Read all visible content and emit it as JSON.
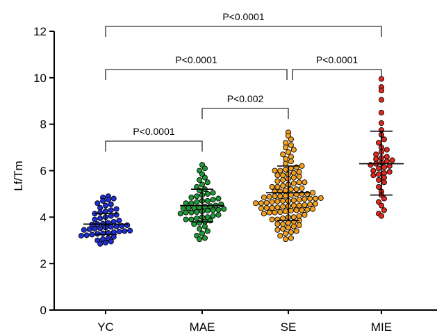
{
  "chart_data": {
    "type": "scatter",
    "title": "",
    "xlabel": "",
    "ylabel": "Lf/Tm",
    "ylim": [
      0,
      12
    ],
    "yticks": [
      "0",
      "2",
      "4",
      "6",
      "8",
      "10",
      "12"
    ],
    "grid": false,
    "categories": [
      "YC",
      "MAE",
      "SE",
      "MIE"
    ],
    "series": [
      {
        "category": "YC",
        "color": "#1f2fd6",
        "mean": 3.7,
        "sd_low": 3.25,
        "sd_high": 4.15,
        "values": [
          4.9,
          4.85,
          4.8,
          4.75,
          4.7,
          4.6,
          4.55,
          4.5,
          4.4,
          4.35,
          4.3,
          4.25,
          4.2,
          4.15,
          4.1,
          4.05,
          4.0,
          3.95,
          3.9,
          3.85,
          3.8,
          3.75,
          3.72,
          3.7,
          3.68,
          3.65,
          3.62,
          3.6,
          3.58,
          3.55,
          3.52,
          3.5,
          3.48,
          3.45,
          3.42,
          3.4,
          3.38,
          3.35,
          3.32,
          3.3,
          3.28,
          3.25,
          3.22,
          3.2,
          3.15,
          3.1,
          3.05,
          3.0,
          2.95,
          2.9,
          2.85
        ]
      },
      {
        "category": "MAE",
        "color": "#1e9a36",
        "mean": 4.5,
        "sd_low": 3.8,
        "sd_high": 5.2,
        "values": [
          6.25,
          6.1,
          6.0,
          5.85,
          5.7,
          5.6,
          5.5,
          5.4,
          5.3,
          5.2,
          5.15,
          5.05,
          5.0,
          4.95,
          4.9,
          4.85,
          4.8,
          4.75,
          4.7,
          4.65,
          4.6,
          4.55,
          4.5,
          4.48,
          4.45,
          4.42,
          4.4,
          4.38,
          4.35,
          4.32,
          4.3,
          4.28,
          4.25,
          4.22,
          4.2,
          4.15,
          4.1,
          4.05,
          4.0,
          3.95,
          3.9,
          3.85,
          3.8,
          3.75,
          3.7,
          3.6,
          3.5,
          3.4,
          3.3,
          3.2,
          3.1,
          3.05,
          4.6,
          4.4,
          4.2,
          4.0,
          3.9,
          4.7
        ]
      },
      {
        "category": "SE",
        "color": "#f2a01d",
        "mean": 5.05,
        "sd_low": 3.85,
        "sd_high": 6.2,
        "values": [
          7.65,
          7.5,
          7.35,
          7.2,
          7.1,
          7.0,
          6.9,
          6.8,
          6.7,
          6.6,
          6.5,
          6.4,
          6.3,
          6.2,
          6.15,
          6.1,
          6.05,
          6.0,
          5.95,
          5.9,
          5.85,
          5.8,
          5.75,
          5.7,
          5.65,
          5.6,
          5.55,
          5.5,
          5.45,
          5.4,
          5.35,
          5.3,
          5.25,
          5.2,
          5.15,
          5.1,
          5.05,
          5.0,
          4.98,
          4.95,
          4.92,
          4.9,
          4.88,
          4.85,
          4.82,
          4.8,
          4.78,
          4.75,
          4.72,
          4.7,
          4.68,
          4.65,
          4.62,
          4.6,
          4.58,
          4.55,
          4.52,
          4.5,
          4.48,
          4.45,
          4.42,
          4.4,
          4.38,
          4.35,
          4.32,
          4.3,
          4.28,
          4.25,
          4.22,
          4.2,
          4.15,
          4.1,
          4.05,
          4.0,
          3.95,
          3.9,
          3.85,
          3.8,
          3.75,
          3.7,
          3.65,
          3.6,
          3.55,
          3.5,
          3.45,
          3.4,
          3.35,
          3.3,
          3.2,
          3.1,
          3.05,
          5.2,
          5.0,
          4.8,
          4.6,
          4.4,
          4.2,
          4.0,
          5.5,
          5.8,
          6.0,
          4.9,
          4.7,
          4.5,
          4.3,
          5.3,
          5.1,
          3.9,
          3.7
        ]
      },
      {
        "category": "MIE",
        "color": "#e0281e",
        "mean": 6.3,
        "sd_low": 4.95,
        "sd_high": 7.7,
        "values": [
          9.95,
          9.6,
          9.45,
          9.05,
          8.5,
          8.05,
          7.75,
          7.55,
          7.35,
          7.2,
          7.0,
          6.9,
          6.8,
          6.7,
          6.6,
          6.5,
          6.45,
          6.4,
          6.35,
          6.3,
          6.25,
          6.2,
          6.1,
          6.0,
          5.95,
          5.9,
          5.8,
          5.7,
          5.6,
          5.5,
          5.3,
          5.1,
          4.95,
          4.8,
          4.65,
          4.5,
          4.3,
          4.15,
          4.05,
          6.55,
          6.15,
          5.85
        ]
      }
    ],
    "comparisons": [
      {
        "from": "YC",
        "to": "MAE",
        "label": "P<0.0001"
      },
      {
        "from": "MAE",
        "to": "SE",
        "label": "P<0.002"
      },
      {
        "from": "YC",
        "to": "SE",
        "label": "P<0.0001"
      },
      {
        "from": "SE",
        "to": "MIE",
        "label": "P<0.0001"
      },
      {
        "from": "YC",
        "to": "MIE",
        "label": "P<0.0001"
      }
    ]
  }
}
